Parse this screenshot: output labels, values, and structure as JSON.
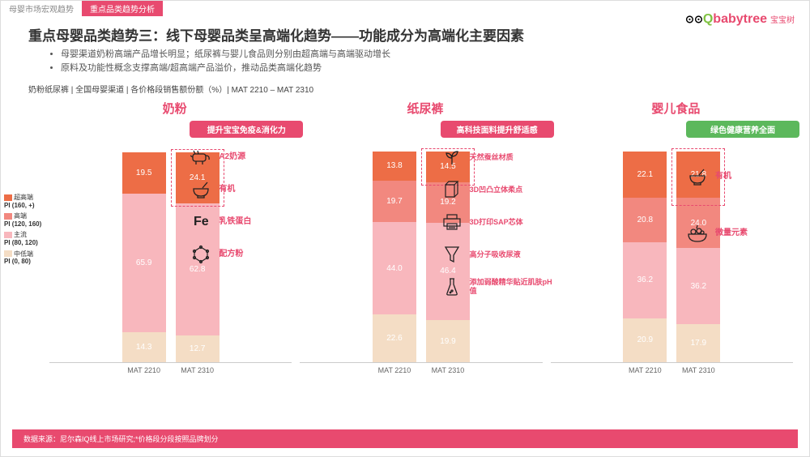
{
  "tabs": {
    "t1": "母婴市场宏观趋势",
    "t2": "重点品类趋势分析"
  },
  "logo": {
    "q": "Q",
    "b": "babytree",
    "cn": "宝宝树"
  },
  "title": "重点母婴品类趋势三：线下母婴品类呈高端化趋势——功能成分为高端化主要因素",
  "bullets": {
    "b1": "母婴渠道奶粉高端产品增长明显；纸尿裤与婴儿食品则分别由超高端与高端驱动增长",
    "b2": "原料及功能性概念支撑高端/超高端产品溢价，推动品类高端化趋势"
  },
  "subtitle": "奶粉纸尿裤 | 全国母婴渠道 | 各价格段销售额份额（%）| MAT 2210 – MAT 2310",
  "legend": {
    "l1": {
      "name": "超高端",
      "sub": "PI (160, +)",
      "color": "#ed6d46"
    },
    "l2": {
      "name": "高端",
      "sub": "PI (120, 160)",
      "color": "#f2887f"
    },
    "l3": {
      "name": "主流",
      "sub": "PI (80, 120)",
      "color": "#f8b7bd"
    },
    "l4": {
      "name": "中低端",
      "sub": "PI (0, 80)",
      "color": "#f4ddc5"
    }
  },
  "colors": {
    "c1": "#ed6d46",
    "c2": "#f2887f",
    "c3": "#f8b7bd",
    "c4": "#f4ddc5",
    "accent": "#e84a6f",
    "green": "#5cb85c"
  },
  "periods": {
    "p1": "MAT 2210",
    "p2": "MAT 2310"
  },
  "charts": {
    "milk": {
      "title": "奶粉",
      "p1": {
        "s1": 19.5,
        "s3": 65.9,
        "s4": 14.3
      },
      "p2": {
        "s1": 24.1,
        "s3": 62.8,
        "s4": 12.7
      },
      "feat_head": "提升宝宝免疫&消化力",
      "feats": {
        "f1": "A2奶源",
        "f2": "有机",
        "f3": "乳铁蛋白",
        "f4": "配方粉"
      }
    },
    "diaper": {
      "title": "纸尿裤",
      "p1": {
        "s1": 13.8,
        "s2": 19.7,
        "s3": 44.0,
        "s4": 22.6
      },
      "p2": {
        "s1": 14.5,
        "s2": 19.2,
        "s3": 46.4,
        "s4": 19.9
      },
      "feat_head": "高科技面料提升舒适感",
      "feats": {
        "f1": "天然蚕丝材质",
        "f2": "3D凹凸立体柔点",
        "f3": "3D打印SAP芯体",
        "f4": "高分子吸收尿液",
        "f5": "添加弱酸精华贴近肌肤pH值"
      }
    },
    "food": {
      "title": "婴儿食品",
      "p1": {
        "s1": 22.1,
        "s2": 20.8,
        "s3": 36.2,
        "s4": 20.9
      },
      "p2": {
        "s1": 21.8,
        "s2": 24.0,
        "s3": 36.2,
        "s4": 17.9
      },
      "feat_head": "绿色健康营养全面",
      "feats": {
        "f1": "有机",
        "f2": "微量元素"
      }
    }
  },
  "footer": "数据来源：尼尔森IQ线上市场研究;*价格段分段按照品牌划分",
  "scale": 2.6
}
